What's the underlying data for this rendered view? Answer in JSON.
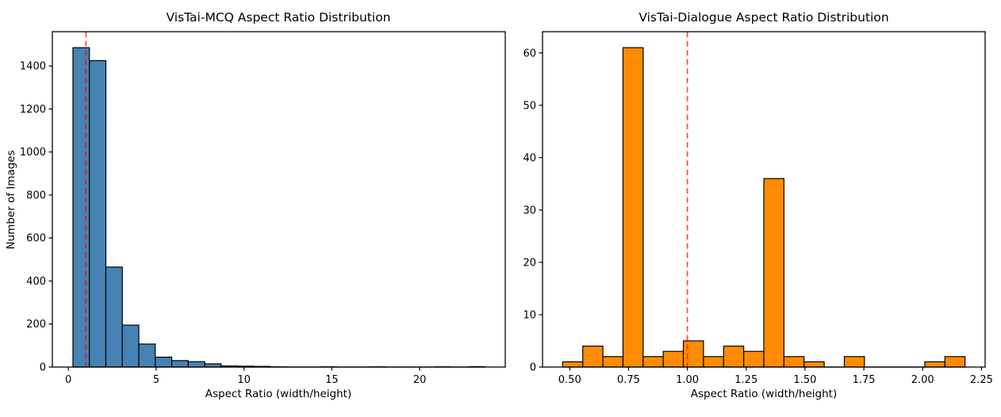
{
  "figure": {
    "background": "#ffffff",
    "text_color": "#000000",
    "spine_color": "#000000"
  },
  "chart_data": [
    {
      "type": "bar",
      "subtype": "histogram",
      "title": "VisTai-MCQ Aspect Ratio Distribution",
      "xlabel": "Aspect Ratio (width/height)",
      "ylabel": "Number of Images",
      "bar_color": "#4682B4",
      "edge_color": "#000000",
      "bin_start": 0.26,
      "bin_width": 0.9376,
      "counts": [
        1485,
        1425,
        465,
        195,
        107,
        46,
        30,
        25,
        15,
        5,
        4,
        3,
        1,
        0,
        0,
        1,
        0,
        0,
        1,
        0,
        0,
        0,
        1,
        0,
        2
      ],
      "vline": {
        "x": 1.0,
        "color": "#FF0000",
        "alpha": 0.7,
        "style": "dashed"
      },
      "xlim": [
        -0.912,
        24.872
      ],
      "ylim": [
        0,
        1559.25
      ],
      "grid": false,
      "legend": null,
      "xticks": {
        "values": [
          0,
          5,
          10,
          15,
          20
        ],
        "labels": [
          "0",
          "5",
          "10",
          "15",
          "20"
        ]
      },
      "yticks": {
        "values": [
          0,
          200,
          400,
          600,
          800,
          1000,
          1200,
          1400
        ],
        "labels": [
          "0",
          "200",
          "400",
          "600",
          "800",
          "1000",
          "1200",
          "1400"
        ]
      }
    },
    {
      "type": "bar",
      "subtype": "histogram",
      "title": "VisTai-Dialogue Aspect Ratio Distribution",
      "xlabel": "Aspect Ratio (width/height)",
      "ylabel": "",
      "bar_color": "#FF8C00",
      "edge_color": "#000000",
      "bin_start": 0.47,
      "bin_width": 0.0855,
      "counts": [
        1,
        4,
        2,
        61,
        2,
        3,
        5,
        2,
        4,
        3,
        36,
        2,
        1,
        0,
        2,
        0,
        0,
        0,
        1,
        2
      ],
      "vline": {
        "x": 1.0,
        "color": "#FF0000",
        "alpha": 0.7,
        "style": "dashed"
      },
      "xlim": [
        0.3845,
        2.2655
      ],
      "ylim": [
        0,
        64.05
      ],
      "grid": false,
      "legend": null,
      "xticks": {
        "values": [
          0.5,
          0.75,
          1.0,
          1.25,
          1.5,
          1.75,
          2.0,
          2.25
        ],
        "labels": [
          "0.50",
          "0.75",
          "1.00",
          "1.25",
          "1.50",
          "1.75",
          "2.00",
          "2.25"
        ]
      },
      "yticks": {
        "values": [
          0,
          10,
          20,
          30,
          40,
          50,
          60
        ],
        "labels": [
          "0",
          "10",
          "20",
          "30",
          "40",
          "50",
          "60"
        ]
      }
    }
  ]
}
